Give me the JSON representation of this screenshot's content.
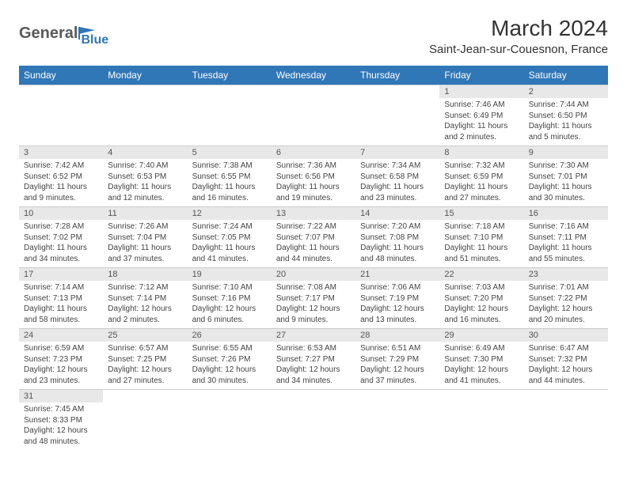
{
  "logo": {
    "textGeneral": "General",
    "textBlue": "Blue"
  },
  "header": {
    "monthTitle": "March 2024",
    "location": "Saint-Jean-sur-Couesnon, France"
  },
  "colors": {
    "headerBg": "#3077b8",
    "headerText": "#ffffff",
    "dayNumberBg": "#e8e8e8",
    "bodyText": "#444444",
    "logoGray": "#5a5a5a",
    "logoBlue": "#3077b8",
    "border": "#cccccc",
    "pageBg": "#ffffff"
  },
  "dayNames": [
    "Sunday",
    "Monday",
    "Tuesday",
    "Wednesday",
    "Thursday",
    "Friday",
    "Saturday"
  ],
  "weeks": [
    [
      null,
      null,
      null,
      null,
      null,
      {
        "d": "1",
        "l1": "Sunrise: 7:46 AM",
        "l2": "Sunset: 6:49 PM",
        "l3": "Daylight: 11 hours",
        "l4": "and 2 minutes."
      },
      {
        "d": "2",
        "l1": "Sunrise: 7:44 AM",
        "l2": "Sunset: 6:50 PM",
        "l3": "Daylight: 11 hours",
        "l4": "and 5 minutes."
      }
    ],
    [
      {
        "d": "3",
        "l1": "Sunrise: 7:42 AM",
        "l2": "Sunset: 6:52 PM",
        "l3": "Daylight: 11 hours",
        "l4": "and 9 minutes."
      },
      {
        "d": "4",
        "l1": "Sunrise: 7:40 AM",
        "l2": "Sunset: 6:53 PM",
        "l3": "Daylight: 11 hours",
        "l4": "and 12 minutes."
      },
      {
        "d": "5",
        "l1": "Sunrise: 7:38 AM",
        "l2": "Sunset: 6:55 PM",
        "l3": "Daylight: 11 hours",
        "l4": "and 16 minutes."
      },
      {
        "d": "6",
        "l1": "Sunrise: 7:36 AM",
        "l2": "Sunset: 6:56 PM",
        "l3": "Daylight: 11 hours",
        "l4": "and 19 minutes."
      },
      {
        "d": "7",
        "l1": "Sunrise: 7:34 AM",
        "l2": "Sunset: 6:58 PM",
        "l3": "Daylight: 11 hours",
        "l4": "and 23 minutes."
      },
      {
        "d": "8",
        "l1": "Sunrise: 7:32 AM",
        "l2": "Sunset: 6:59 PM",
        "l3": "Daylight: 11 hours",
        "l4": "and 27 minutes."
      },
      {
        "d": "9",
        "l1": "Sunrise: 7:30 AM",
        "l2": "Sunset: 7:01 PM",
        "l3": "Daylight: 11 hours",
        "l4": "and 30 minutes."
      }
    ],
    [
      {
        "d": "10",
        "l1": "Sunrise: 7:28 AM",
        "l2": "Sunset: 7:02 PM",
        "l3": "Daylight: 11 hours",
        "l4": "and 34 minutes."
      },
      {
        "d": "11",
        "l1": "Sunrise: 7:26 AM",
        "l2": "Sunset: 7:04 PM",
        "l3": "Daylight: 11 hours",
        "l4": "and 37 minutes."
      },
      {
        "d": "12",
        "l1": "Sunrise: 7:24 AM",
        "l2": "Sunset: 7:05 PM",
        "l3": "Daylight: 11 hours",
        "l4": "and 41 minutes."
      },
      {
        "d": "13",
        "l1": "Sunrise: 7:22 AM",
        "l2": "Sunset: 7:07 PM",
        "l3": "Daylight: 11 hours",
        "l4": "and 44 minutes."
      },
      {
        "d": "14",
        "l1": "Sunrise: 7:20 AM",
        "l2": "Sunset: 7:08 PM",
        "l3": "Daylight: 11 hours",
        "l4": "and 48 minutes."
      },
      {
        "d": "15",
        "l1": "Sunrise: 7:18 AM",
        "l2": "Sunset: 7:10 PM",
        "l3": "Daylight: 11 hours",
        "l4": "and 51 minutes."
      },
      {
        "d": "16",
        "l1": "Sunrise: 7:16 AM",
        "l2": "Sunset: 7:11 PM",
        "l3": "Daylight: 11 hours",
        "l4": "and 55 minutes."
      }
    ],
    [
      {
        "d": "17",
        "l1": "Sunrise: 7:14 AM",
        "l2": "Sunset: 7:13 PM",
        "l3": "Daylight: 11 hours",
        "l4": "and 58 minutes."
      },
      {
        "d": "18",
        "l1": "Sunrise: 7:12 AM",
        "l2": "Sunset: 7:14 PM",
        "l3": "Daylight: 12 hours",
        "l4": "and 2 minutes."
      },
      {
        "d": "19",
        "l1": "Sunrise: 7:10 AM",
        "l2": "Sunset: 7:16 PM",
        "l3": "Daylight: 12 hours",
        "l4": "and 6 minutes."
      },
      {
        "d": "20",
        "l1": "Sunrise: 7:08 AM",
        "l2": "Sunset: 7:17 PM",
        "l3": "Daylight: 12 hours",
        "l4": "and 9 minutes."
      },
      {
        "d": "21",
        "l1": "Sunrise: 7:06 AM",
        "l2": "Sunset: 7:19 PM",
        "l3": "Daylight: 12 hours",
        "l4": "and 13 minutes."
      },
      {
        "d": "22",
        "l1": "Sunrise: 7:03 AM",
        "l2": "Sunset: 7:20 PM",
        "l3": "Daylight: 12 hours",
        "l4": "and 16 minutes."
      },
      {
        "d": "23",
        "l1": "Sunrise: 7:01 AM",
        "l2": "Sunset: 7:22 PM",
        "l3": "Daylight: 12 hours",
        "l4": "and 20 minutes."
      }
    ],
    [
      {
        "d": "24",
        "l1": "Sunrise: 6:59 AM",
        "l2": "Sunset: 7:23 PM",
        "l3": "Daylight: 12 hours",
        "l4": "and 23 minutes."
      },
      {
        "d": "25",
        "l1": "Sunrise: 6:57 AM",
        "l2": "Sunset: 7:25 PM",
        "l3": "Daylight: 12 hours",
        "l4": "and 27 minutes."
      },
      {
        "d": "26",
        "l1": "Sunrise: 6:55 AM",
        "l2": "Sunset: 7:26 PM",
        "l3": "Daylight: 12 hours",
        "l4": "and 30 minutes."
      },
      {
        "d": "27",
        "l1": "Sunrise: 6:53 AM",
        "l2": "Sunset: 7:27 PM",
        "l3": "Daylight: 12 hours",
        "l4": "and 34 minutes."
      },
      {
        "d": "28",
        "l1": "Sunrise: 6:51 AM",
        "l2": "Sunset: 7:29 PM",
        "l3": "Daylight: 12 hours",
        "l4": "and 37 minutes."
      },
      {
        "d": "29",
        "l1": "Sunrise: 6:49 AM",
        "l2": "Sunset: 7:30 PM",
        "l3": "Daylight: 12 hours",
        "l4": "and 41 minutes."
      },
      {
        "d": "30",
        "l1": "Sunrise: 6:47 AM",
        "l2": "Sunset: 7:32 PM",
        "l3": "Daylight: 12 hours",
        "l4": "and 44 minutes."
      }
    ],
    [
      {
        "d": "31",
        "l1": "Sunrise: 7:45 AM",
        "l2": "Sunset: 8:33 PM",
        "l3": "Daylight: 12 hours",
        "l4": "and 48 minutes."
      },
      null,
      null,
      null,
      null,
      null,
      null
    ]
  ]
}
